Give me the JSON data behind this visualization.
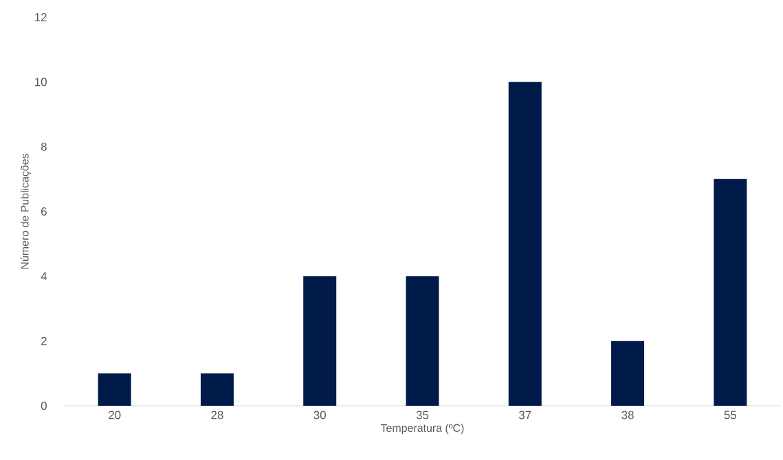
{
  "chart_data": {
    "type": "bar",
    "xlabel": "Temperatura (ºC)",
    "ylabel": "Número de Publicações",
    "categories": [
      "20",
      "28",
      "30",
      "35",
      "37",
      "38",
      "55"
    ],
    "values": [
      1,
      1,
      4,
      4,
      10,
      2,
      7
    ],
    "color": "#001a4a",
    "ylim": [
      0,
      12
    ],
    "yticks": [
      0,
      2,
      4,
      6,
      8,
      10,
      12
    ],
    "grid": false
  }
}
